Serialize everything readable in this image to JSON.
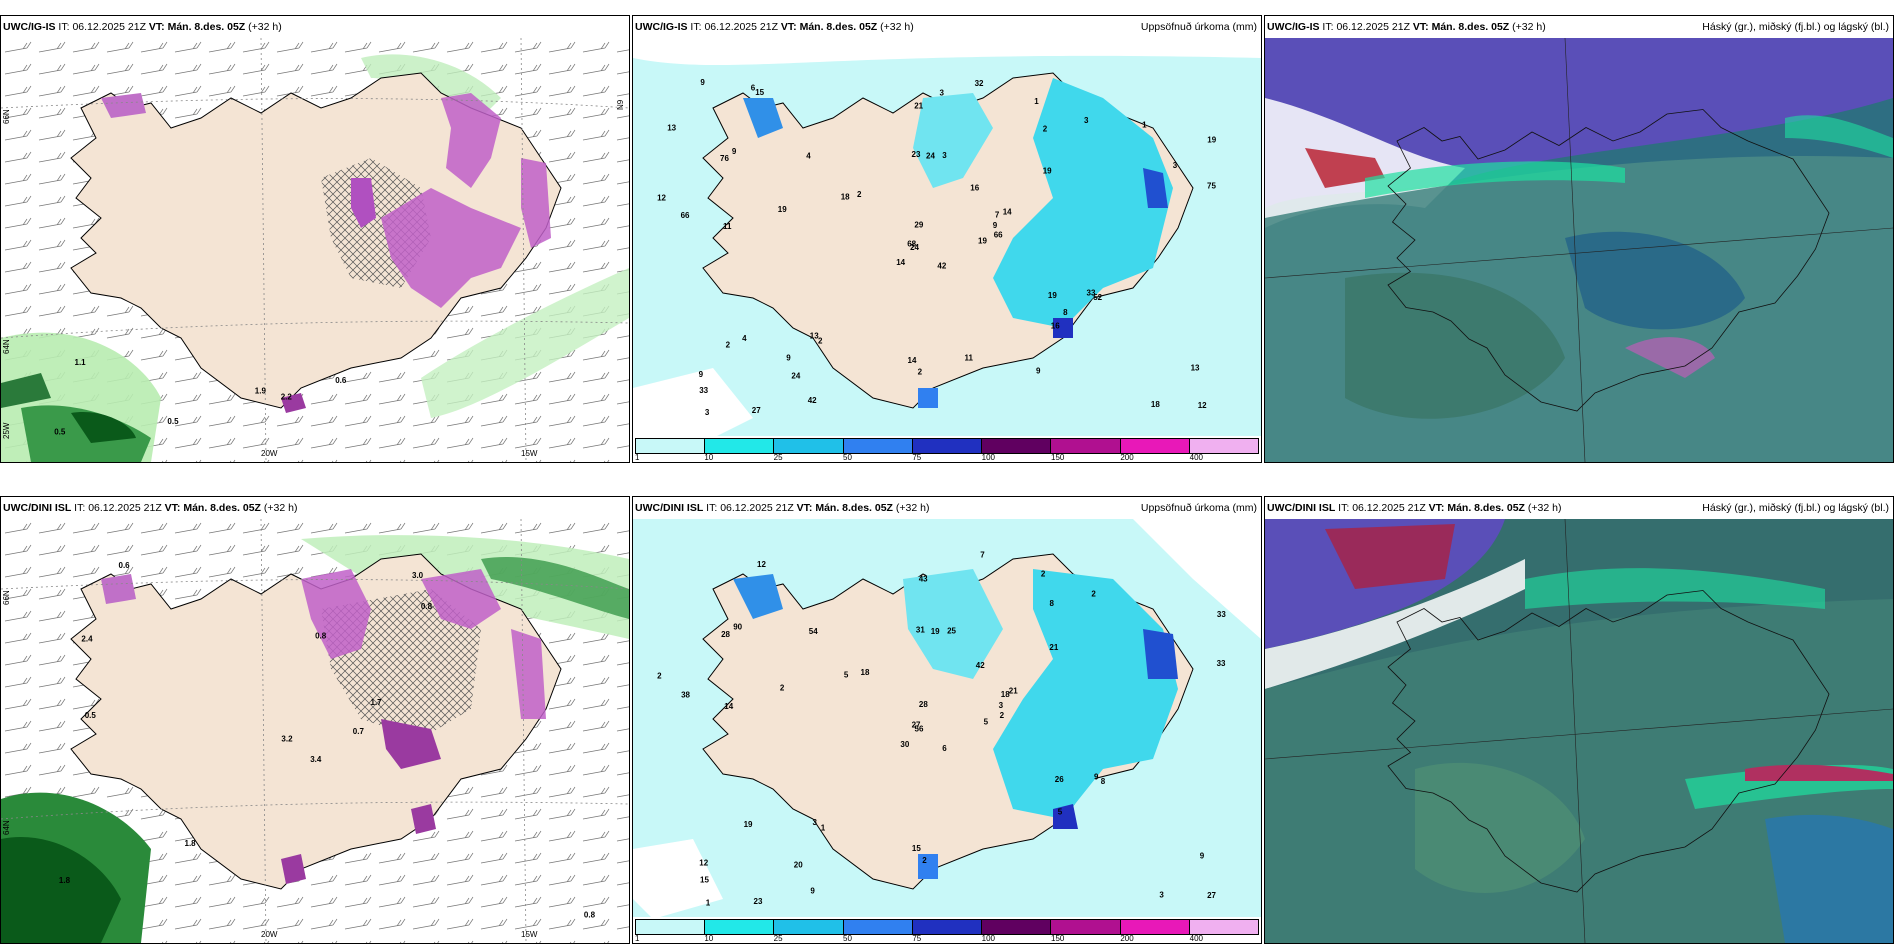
{
  "row1": {
    "panel_a": {
      "model": "UWC/IG-IS",
      "it_label": "IT:",
      "it_value": "06.12.2025 21Z",
      "vt_label": "VT:",
      "vt_value": "Mán. 8.des. 05Z",
      "lead": "(+32 h)",
      "right_label": ""
    },
    "panel_b": {
      "model": "UWC/IG-IS",
      "it_label": "IT:",
      "it_value": "06.12.2025 21Z",
      "vt_label": "VT:",
      "vt_value": "Mán. 8.des. 05Z",
      "lead": "(+32 h)",
      "right_label": "Uppsöfnuð úrkoma (mm)"
    },
    "panel_c": {
      "model": "UWC/IG-IS",
      "it_label": "IT:",
      "it_value": "06.12.2025 21Z",
      "vt_label": "VT:",
      "vt_value": "Mán. 8.des. 05Z",
      "lead": "(+32 h)",
      "right_label": "Háský (gr.), miðský (fj.bl.) og lágský (bl.)"
    }
  },
  "row2": {
    "panel_a": {
      "model": "UWC/DINI ISL",
      "it_label": "IT:",
      "it_value": "06.12.2025 21Z",
      "vt_label": "VT:",
      "vt_value": "Mán. 8.des. 05Z",
      "lead": "(+32 h)",
      "right_label": ""
    },
    "panel_b": {
      "model": "UWC/DINI ISL",
      "it_label": "IT:",
      "it_value": "06.12.2025 21Z",
      "vt_label": "VT:",
      "vt_value": "Mán. 8.des. 05Z",
      "lead": "(+32 h)",
      "right_label": "Uppsöfnuð úrkoma (mm)"
    },
    "panel_c": {
      "model": "UWC/DINI ISL",
      "it_label": "IT:",
      "it_value": "06.12.2025 21Z",
      "vt_label": "VT:",
      "vt_value": "Mán. 8.des. 05Z",
      "lead": "(+32 h)",
      "right_label": "Háský (gr.), miðský (fj.bl.) og lágský (bl.)"
    }
  },
  "axes": {
    "lon_20w": "20W",
    "lon_15w": "15W",
    "lat_66n": "66N",
    "lat_64n": "64N",
    "lat_25w": "25W",
    "lat_9n": "N9"
  },
  "colorbar": {
    "ticks": [
      "1",
      "10",
      "25",
      "50",
      "75",
      "100",
      "150",
      "200",
      "400"
    ],
    "colors": [
      "#c8f8f8",
      "#22e8e8",
      "#20c0e8",
      "#3080f0",
      "#2030c0",
      "#600060",
      "#b01090",
      "#e818b8",
      "#f0b0f0"
    ]
  },
  "row1_precip_numbers": [
    {
      "t": "42"
    },
    {
      "t": "76"
    },
    {
      "t": "24"
    },
    {
      "t": "9"
    },
    {
      "t": "7"
    },
    {
      "t": "2"
    },
    {
      "t": "1"
    },
    {
      "t": "3"
    },
    {
      "t": "2"
    },
    {
      "t": "19"
    },
    {
      "t": "15"
    },
    {
      "t": "12"
    },
    {
      "t": "11"
    },
    {
      "t": "19"
    },
    {
      "t": "14"
    },
    {
      "t": "19"
    },
    {
      "t": "27"
    },
    {
      "t": "23"
    },
    {
      "t": "16"
    },
    {
      "t": "4"
    },
    {
      "t": "2"
    },
    {
      "t": "33"
    },
    {
      "t": "24"
    },
    {
      "t": "24"
    },
    {
      "t": "14"
    },
    {
      "t": "52"
    },
    {
      "t": "9"
    },
    {
      "t": "21"
    },
    {
      "t": "66"
    },
    {
      "t": "19"
    },
    {
      "t": "75"
    },
    {
      "t": "68"
    },
    {
      "t": "14"
    },
    {
      "t": "29"
    },
    {
      "t": "4"
    },
    {
      "t": "3"
    },
    {
      "t": "13"
    },
    {
      "t": "18"
    },
    {
      "t": "13"
    },
    {
      "t": "33"
    },
    {
      "t": "32"
    },
    {
      "t": "18"
    },
    {
      "t": "19"
    },
    {
      "t": "16"
    },
    {
      "t": "42"
    },
    {
      "t": "12"
    },
    {
      "t": "9"
    },
    {
      "t": "3"
    },
    {
      "t": "2"
    },
    {
      "t": "66"
    },
    {
      "t": "2"
    },
    {
      "t": "3"
    },
    {
      "t": "13"
    },
    {
      "t": "8"
    },
    {
      "t": "9"
    },
    {
      "t": "9"
    },
    {
      "t": "6"
    },
    {
      "t": "9"
    },
    {
      "t": "11"
    },
    {
      "t": "1"
    },
    {
      "t": "3"
    }
  ],
  "row2_precip_numbers": [
    {
      "t": "6"
    },
    {
      "t": "28"
    },
    {
      "t": "56"
    },
    {
      "t": "12"
    },
    {
      "t": "18"
    },
    {
      "t": "1"
    },
    {
      "t": "2"
    },
    {
      "t": "25"
    },
    {
      "t": "8"
    },
    {
      "t": "5"
    },
    {
      "t": "12"
    },
    {
      "t": "27"
    },
    {
      "t": "14"
    },
    {
      "t": "33"
    },
    {
      "t": "30"
    },
    {
      "t": "21"
    },
    {
      "t": "23"
    },
    {
      "t": "31"
    },
    {
      "t": "42"
    },
    {
      "t": "19"
    },
    {
      "t": "18"
    },
    {
      "t": "15"
    },
    {
      "t": "20"
    },
    {
      "t": "19"
    },
    {
      "t": "21"
    },
    {
      "t": "8"
    },
    {
      "t": "90"
    },
    {
      "t": "43"
    },
    {
      "t": "38"
    },
    {
      "t": "26"
    },
    {
      "t": "33"
    },
    {
      "t": "27"
    },
    {
      "t": "15"
    },
    {
      "t": "28"
    },
    {
      "t": "54"
    },
    {
      "t": "2"
    },
    {
      "t": "3"
    },
    {
      "t": "3"
    },
    {
      "t": "9"
    },
    {
      "t": "9"
    },
    {
      "t": "7"
    },
    {
      "t": "5"
    },
    {
      "t": "2"
    },
    {
      "t": "5"
    },
    {
      "t": "9"
    },
    {
      "t": "2"
    },
    {
      "t": "3"
    },
    {
      "t": "1"
    },
    {
      "t": "2"
    },
    {
      "t": "2"
    }
  ],
  "row1_wind_values": [
    {
      "t": "2.2"
    },
    {
      "t": "1.1"
    },
    {
      "t": "1.9"
    },
    {
      "t": "0.5"
    },
    {
      "t": "0.6"
    },
    {
      "t": "0.5"
    }
  ],
  "row2_wind_values": [
    {
      "t": "3.4"
    },
    {
      "t": "2.4"
    },
    {
      "t": "3.2"
    },
    {
      "t": "1.8"
    },
    {
      "t": "1.7"
    },
    {
      "t": "1.8"
    },
    {
      "t": "3.0"
    },
    {
      "t": "0.8"
    },
    {
      "t": "0.8"
    },
    {
      "t": "0.7"
    },
    {
      "t": "0.6"
    },
    {
      "t": "0.8"
    },
    {
      "t": "0.5"
    }
  ]
}
